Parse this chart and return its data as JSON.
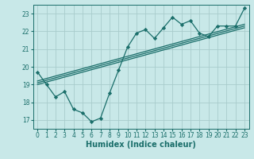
{
  "xlabel": "Humidex (Indice chaleur)",
  "ylabel": "",
  "background_color": "#c8e8e8",
  "grid_color": "#a8cccc",
  "line_color": "#1a6e6a",
  "x_data": [
    0,
    1,
    2,
    3,
    4,
    5,
    6,
    7,
    8,
    9,
    10,
    11,
    12,
    13,
    14,
    15,
    16,
    17,
    18,
    19,
    20,
    21,
    22,
    23
  ],
  "y_data": [
    19.7,
    19.0,
    18.3,
    18.6,
    17.6,
    17.4,
    16.9,
    17.1,
    18.5,
    19.8,
    21.1,
    21.9,
    22.1,
    21.6,
    22.2,
    22.8,
    22.4,
    22.6,
    21.9,
    21.7,
    22.3,
    22.3,
    22.3,
    23.3
  ],
  "reg_lines": [
    [
      [
        0,
        23
      ],
      [
        19.0,
        22.2
      ]
    ],
    [
      [
        0,
        23
      ],
      [
        19.1,
        22.3
      ]
    ],
    [
      [
        0,
        23
      ],
      [
        19.2,
        22.4
      ]
    ]
  ],
  "ylim": [
    16.5,
    23.5
  ],
  "xlim": [
    -0.5,
    23.5
  ],
  "yticks": [
    17,
    18,
    19,
    20,
    21,
    22,
    23
  ],
  "xticks": [
    0,
    1,
    2,
    3,
    4,
    5,
    6,
    7,
    8,
    9,
    10,
    11,
    12,
    13,
    14,
    15,
    16,
    17,
    18,
    19,
    20,
    21,
    22,
    23
  ],
  "xtick_labels": [
    "0",
    "1",
    "2",
    "3",
    "4",
    "5",
    "6",
    "7",
    "8",
    "9",
    "10",
    "11",
    "12",
    "13",
    "14",
    "15",
    "16",
    "17",
    "18",
    "19",
    "20",
    "21",
    "22",
    "23"
  ],
  "tick_fontsize": 5.5,
  "xlabel_fontsize": 7,
  "marker_size": 2.2,
  "linewidth": 0.9
}
